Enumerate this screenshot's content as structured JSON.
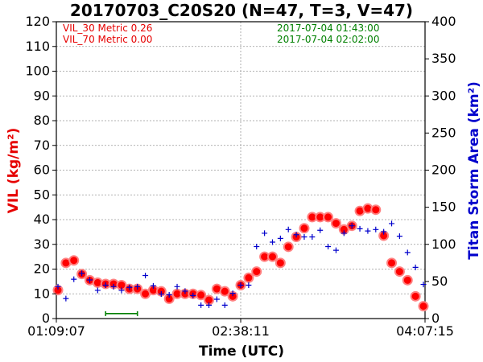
{
  "chart_data": {
    "type": "scatter",
    "title": "20170703_C20S20 (N=47, T=3, V=47)",
    "xlabel": "Time (UTC)",
    "ylabel": "VIL (kg/m²)",
    "ylabel_right": "Titan Storm Area (km²)",
    "xlim": [
      "01:09:07",
      "04:07:15"
    ],
    "x_ticks": [
      "01:09:07",
      "02:38:11",
      "04:07:15"
    ],
    "ylim": [
      0,
      120
    ],
    "y_ticks": [
      0,
      10,
      20,
      30,
      40,
      50,
      60,
      70,
      80,
      90,
      100,
      110,
      120
    ],
    "ylim_right": [
      0,
      400
    ],
    "y_ticks_right": [
      0,
      50,
      100,
      150,
      200,
      250,
      300,
      350,
      400
    ],
    "grid": true,
    "annotations_left": [
      "VIL_30 Metric 0.26",
      "VIL_70 Metric 0.00"
    ],
    "annotations_right": [
      "2017-07-04 01:43:00",
      "2017-07-04 02:02:00"
    ],
    "colors": {
      "vil": "#ff0000",
      "vil_edge": "#ff8080",
      "area": "#0000cc",
      "bar": "#008000",
      "annotation_left": "#e60000",
      "annotation_right": "#008000"
    },
    "series": [
      {
        "name": "VIL",
        "axis": "left",
        "marker": "circle",
        "values": [
          11.5,
          22.5,
          23.5,
          18,
          15.5,
          14.5,
          14,
          14,
          13.5,
          12,
          12,
          10,
          11.5,
          11,
          8,
          10,
          10,
          10,
          9.5,
          7.5,
          12,
          11,
          9,
          13.5,
          16.5,
          19,
          25,
          25,
          22.5,
          29,
          33,
          36.5,
          41,
          41,
          41,
          38.5,
          36,
          37.5,
          43.5,
          44.5,
          44,
          33.5,
          22.5,
          19,
          15.5,
          9,
          5
        ]
      },
      {
        "name": "Titan Storm Area",
        "axis": "right",
        "marker": "plus",
        "values": [
          43,
          27,
          53,
          61,
          52,
          38,
          45,
          43,
          38,
          42,
          43,
          58,
          44,
          33,
          32,
          43,
          37,
          31,
          18,
          18,
          26,
          18,
          34,
          45,
          45,
          97,
          115,
          103,
          108,
          120,
          113,
          110,
          110,
          119,
          97,
          92,
          115,
          125,
          121,
          118,
          120,
          117,
          128,
          111,
          89,
          69,
          46
        ]
      }
    ],
    "bar_range": {
      "start_index": 6,
      "end_index": 10,
      "y": 2
    }
  }
}
